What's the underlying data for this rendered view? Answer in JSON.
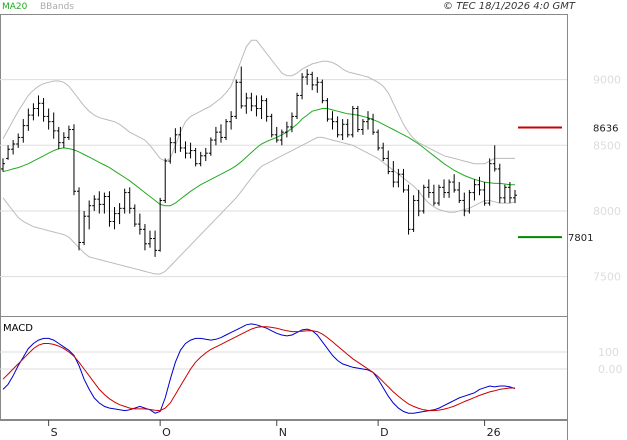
{
  "header": {
    "ma_label": "MA20",
    "bbands_label": "BBands",
    "copyright": "© TEC 18/1/2026 4:0 GMT"
  },
  "colors": {
    "ma": "#22aa22",
    "bbands": "#bbbbbb",
    "price": "#000000",
    "macd": "#0000cc",
    "signal": "#cc0000",
    "resistance": "#cc0000",
    "support": "#008800",
    "grid": "#dddddd"
  },
  "chart_data": {
    "type": "line",
    "title": "",
    "price_panel": {
      "ylim": [
        7200,
        9500
      ],
      "yticks": [
        7500,
        8000,
        8500,
        9000
      ],
      "ytick_labels": [
        "7500",
        "8000",
        "8500",
        "9000"
      ],
      "resistance": {
        "value": 8636,
        "label": "8636"
      },
      "support": {
        "value": 7801,
        "label": "7801"
      }
    },
    "macd_panel": {
      "label": "MACD",
      "ylim": [
        -300,
        300
      ],
      "yticks": [
        100,
        0
      ],
      "ytick_labels": [
        "100",
        "0.00"
      ]
    },
    "x_labels": [
      {
        "index": 9,
        "label": "S"
      },
      {
        "index": 31,
        "label": "O"
      },
      {
        "index": 54,
        "label": "N"
      },
      {
        "index": 74,
        "label": "D"
      },
      {
        "index": 95,
        "label": "26"
      }
    ],
    "ohlc": [
      [
        8320,
        8400,
        8300,
        8360
      ],
      [
        8400,
        8500,
        8390,
        8470
      ],
      [
        8470,
        8540,
        8430,
        8510
      ],
      [
        8510,
        8590,
        8480,
        8560
      ],
      [
        8560,
        8700,
        8520,
        8650
      ],
      [
        8650,
        8780,
        8610,
        8730
      ],
      [
        8730,
        8820,
        8690,
        8780
      ],
      [
        8780,
        8880,
        8720,
        8820
      ],
      [
        8820,
        8860,
        8680,
        8720
      ],
      [
        8720,
        8780,
        8620,
        8680
      ],
      [
        8680,
        8750,
        8550,
        8610
      ],
      [
        8610,
        8640,
        8470,
        8520
      ],
      [
        8520,
        8600,
        8480,
        8560
      ],
      [
        8560,
        8650,
        8540,
        8620
      ],
      [
        8620,
        8660,
        8120,
        8150
      ],
      [
        8150,
        8180,
        7700,
        7760
      ],
      [
        7760,
        8000,
        7740,
        7960
      ],
      [
        7960,
        8080,
        7860,
        8040
      ],
      [
        8040,
        8120,
        8000,
        8090
      ],
      [
        8090,
        8150,
        7980,
        8050
      ],
      [
        8050,
        8140,
        7980,
        8110
      ],
      [
        8110,
        8150,
        7880,
        7920
      ],
      [
        7920,
        8030,
        7860,
        7980
      ],
      [
        7980,
        8060,
        7900,
        8020
      ],
      [
        8020,
        8170,
        7980,
        8140
      ],
      [
        8140,
        8180,
        7980,
        8020
      ],
      [
        8020,
        8050,
        7880,
        7900
      ],
      [
        7900,
        7980,
        7820,
        7860
      ],
      [
        7860,
        7900,
        7700,
        7750
      ],
      [
        7750,
        7850,
        7720,
        7790
      ],
      [
        7790,
        7850,
        7650,
        7700
      ],
      [
        7700,
        8100,
        7690,
        8080
      ],
      [
        8080,
        8400,
        8060,
        8380
      ],
      [
        8380,
        8560,
        8360,
        8520
      ],
      [
        8520,
        8630,
        8440,
        8580
      ],
      [
        8580,
        8640,
        8450,
        8480
      ],
      [
        8480,
        8530,
        8400,
        8440
      ],
      [
        8440,
        8520,
        8400,
        8460
      ],
      [
        8460,
        8480,
        8340,
        8360
      ],
      [
        8360,
        8450,
        8340,
        8420
      ],
      [
        8420,
        8480,
        8380,
        8440
      ],
      [
        8440,
        8560,
        8420,
        8540
      ],
      [
        8540,
        8640,
        8500,
        8600
      ],
      [
        8600,
        8660,
        8520,
        8560
      ],
      [
        8560,
        8700,
        8540,
        8680
      ],
      [
        8680,
        8760,
        8620,
        8720
      ],
      [
        8720,
        9000,
        8700,
        8980
      ],
      [
        8980,
        9100,
        8780,
        8800
      ],
      [
        8800,
        8900,
        8740,
        8860
      ],
      [
        8860,
        8900,
        8760,
        8800
      ],
      [
        8800,
        8880,
        8720,
        8780
      ],
      [
        8780,
        8880,
        8700,
        8840
      ],
      [
        8840,
        8860,
        8680,
        8720
      ],
      [
        8720,
        8740,
        8560,
        8580
      ],
      [
        8580,
        8640,
        8520,
        8540
      ],
      [
        8540,
        8620,
        8500,
        8600
      ],
      [
        8600,
        8680,
        8560,
        8640
      ],
      [
        8640,
        8750,
        8600,
        8720
      ],
      [
        8720,
        8900,
        8700,
        8880
      ],
      [
        8880,
        9050,
        8850,
        9020
      ],
      [
        9020,
        9080,
        8960,
        9040
      ],
      [
        9040,
        9060,
        8920,
        8960
      ],
      [
        8960,
        9020,
        8900,
        8980
      ],
      [
        8980,
        9000,
        8820,
        8840
      ],
      [
        8840,
        8860,
        8680,
        8700
      ],
      [
        8700,
        8760,
        8620,
        8680
      ],
      [
        8680,
        8720,
        8560,
        8580
      ],
      [
        8580,
        8700,
        8540,
        8660
      ],
      [
        8660,
        8700,
        8560,
        8580
      ],
      [
        8580,
        8800,
        8560,
        8780
      ],
      [
        8780,
        8800,
        8600,
        8620
      ],
      [
        8620,
        8700,
        8580,
        8680
      ],
      [
        8680,
        8760,
        8620,
        8700
      ],
      [
        8700,
        8740,
        8580,
        8600
      ],
      [
        8600,
        8620,
        8460,
        8480
      ],
      [
        8480,
        8520,
        8380,
        8400
      ],
      [
        8400,
        8460,
        8280,
        8300
      ],
      [
        8300,
        8380,
        8180,
        8220
      ],
      [
        8220,
        8320,
        8180,
        8280
      ],
      [
        8280,
        8320,
        8140,
        8160
      ],
      [
        8160,
        8200,
        7820,
        7860
      ],
      [
        7860,
        8120,
        7840,
        8080
      ],
      [
        8080,
        8160,
        7960,
        8000
      ],
      [
        8000,
        8200,
        7980,
        8180
      ],
      [
        8180,
        8240,
        8100,
        8140
      ],
      [
        8140,
        8200,
        8040,
        8060
      ],
      [
        8060,
        8200,
        8040,
        8180
      ],
      [
        8180,
        8240,
        8100,
        8140
      ],
      [
        8140,
        8240,
        8100,
        8220
      ],
      [
        8220,
        8280,
        8140,
        8160
      ],
      [
        8160,
        8220,
        8060,
        8080
      ],
      [
        8080,
        8140,
        7960,
        8000
      ],
      [
        8000,
        8160,
        7980,
        8140
      ],
      [
        8140,
        8240,
        8080,
        8200
      ],
      [
        8200,
        8260,
        8120,
        8160
      ],
      [
        8160,
        8220,
        8040,
        8060
      ],
      [
        8060,
        8400,
        8040,
        8360
      ],
      [
        8360,
        8500,
        8300,
        8320
      ],
      [
        8320,
        8360,
        8060,
        8100
      ],
      [
        8100,
        8200,
        8060,
        8180
      ],
      [
        8180,
        8220,
        8060,
        8100
      ],
      [
        8100,
        8160,
        8060,
        8120
      ]
    ],
    "ma20": [
      8300,
      8310,
      8320,
      8330,
      8345,
      8360,
      8380,
      8400,
      8420,
      8440,
      8460,
      8475,
      8480,
      8475,
      8465,
      8450,
      8430,
      8410,
      8390,
      8370,
      8350,
      8330,
      8305,
      8280,
      8255,
      8230,
      8200,
      8170,
      8140,
      8110,
      8080,
      8050,
      8040,
      8040,
      8060,
      8090,
      8120,
      8150,
      8175,
      8200,
      8220,
      8240,
      8260,
      8280,
      8300,
      8320,
      8345,
      8375,
      8410,
      8445,
      8480,
      8510,
      8530,
      8545,
      8560,
      8580,
      8600,
      8630,
      8660,
      8700,
      8730,
      8760,
      8770,
      8780,
      8780,
      8770,
      8760,
      8750,
      8740,
      8735,
      8730,
      8720,
      8710,
      8695,
      8680,
      8660,
      8640,
      8620,
      8600,
      8580,
      8560,
      8535,
      8510,
      8480,
      8450,
      8420,
      8390,
      8360,
      8335,
      8310,
      8290,
      8270,
      8255,
      8240,
      8230,
      8220,
      8215,
      8210,
      8210,
      8205,
      8200,
      8200
    ],
    "bb_upper": [
      8550,
      8620,
      8690,
      8760,
      8820,
      8880,
      8920,
      8950,
      8970,
      8980,
      8990,
      8990,
      8980,
      8950,
      8900,
      8850,
      8800,
      8760,
      8730,
      8710,
      8700,
      8690,
      8680,
      8660,
      8630,
      8600,
      8580,
      8560,
      8540,
      8500,
      8450,
      8400,
      8380,
      8400,
      8500,
      8600,
      8680,
      8720,
      8740,
      8760,
      8780,
      8800,
      8830,
      8860,
      8900,
      8950,
      9050,
      9150,
      9250,
      9300,
      9300,
      9250,
      9200,
      9150,
      9100,
      9050,
      9030,
      9030,
      9050,
      9080,
      9100,
      9120,
      9130,
      9140,
      9140,
      9130,
      9110,
      9080,
      9060,
      9050,
      9040,
      9030,
      9020,
      9000,
      8980,
      8950,
      8900,
      8820,
      8740,
      8660,
      8600,
      8550,
      8520,
      8500,
      8480,
      8460,
      8440,
      8420,
      8410,
      8400,
      8390,
      8380,
      8370,
      8360,
      8360,
      8360,
      8380,
      8400,
      8400,
      8400,
      8400,
      8400
    ],
    "bb_lower": [
      8100,
      8050,
      8000,
      7950,
      7920,
      7900,
      7880,
      7870,
      7860,
      7850,
      7840,
      7830,
      7820,
      7800,
      7760,
      7720,
      7680,
      7650,
      7640,
      7630,
      7620,
      7610,
      7600,
      7590,
      7580,
      7570,
      7560,
      7550,
      7540,
      7530,
      7520,
      7520,
      7540,
      7580,
      7620,
      7660,
      7700,
      7740,
      7780,
      7820,
      7860,
      7900,
      7940,
      7980,
      8020,
      8060,
      8100,
      8150,
      8200,
      8250,
      8300,
      8340,
      8360,
      8380,
      8400,
      8420,
      8440,
      8460,
      8480,
      8500,
      8520,
      8540,
      8560,
      8560,
      8550,
      8540,
      8530,
      8520,
      8510,
      8500,
      8480,
      8460,
      8440,
      8420,
      8400,
      8370,
      8340,
      8310,
      8280,
      8250,
      8220,
      8190,
      8150,
      8100,
      8060,
      8030,
      8010,
      8000,
      7990,
      7990,
      8000,
      8010,
      8020,
      8040,
      8060,
      8080,
      8080,
      8070,
      8060,
      8060,
      8060,
      8070
    ],
    "macd": [
      -120,
      -90,
      -40,
      20,
      70,
      120,
      150,
      170,
      180,
      180,
      170,
      150,
      130,
      110,
      80,
      20,
      -60,
      -120,
      -170,
      -200,
      -220,
      -230,
      -235,
      -240,
      -245,
      -240,
      -230,
      -220,
      -230,
      -240,
      -260,
      -250,
      -170,
      -60,
      40,
      110,
      150,
      170,
      180,
      180,
      175,
      170,
      175,
      185,
      200,
      215,
      230,
      245,
      260,
      265,
      260,
      250,
      240,
      225,
      210,
      200,
      195,
      200,
      215,
      230,
      235,
      225,
      200,
      160,
      120,
      80,
      50,
      30,
      20,
      10,
      5,
      0,
      -5,
      -20,
      -60,
      -110,
      -160,
      -200,
      -230,
      -250,
      -260,
      -260,
      -255,
      -250,
      -245,
      -240,
      -230,
      -215,
      -200,
      -185,
      -170,
      -160,
      -150,
      -140,
      -120,
      -110,
      -100,
      -105,
      -100,
      -100,
      -105,
      -115
    ],
    "signal": [
      -60,
      -30,
      0,
      30,
      60,
      90,
      120,
      140,
      150,
      150,
      145,
      135,
      120,
      100,
      75,
      40,
      0,
      -40,
      -80,
      -120,
      -150,
      -175,
      -195,
      -210,
      -220,
      -230,
      -235,
      -235,
      -235,
      -238,
      -243,
      -245,
      -230,
      -200,
      -150,
      -100,
      -50,
      0,
      40,
      70,
      95,
      115,
      130,
      145,
      160,
      175,
      190,
      205,
      220,
      235,
      245,
      248,
      248,
      245,
      240,
      232,
      225,
      220,
      220,
      222,
      225,
      225,
      220,
      205,
      185,
      160,
      135,
      110,
      85,
      60,
      40,
      20,
      0,
      -20,
      -45,
      -75,
      -105,
      -135,
      -160,
      -185,
      -205,
      -220,
      -232,
      -240,
      -245,
      -245,
      -242,
      -236,
      -228,
      -218,
      -205,
      -192,
      -180,
      -168,
      -155,
      -145,
      -135,
      -128,
      -120,
      -115,
      -112,
      -112
    ]
  }
}
